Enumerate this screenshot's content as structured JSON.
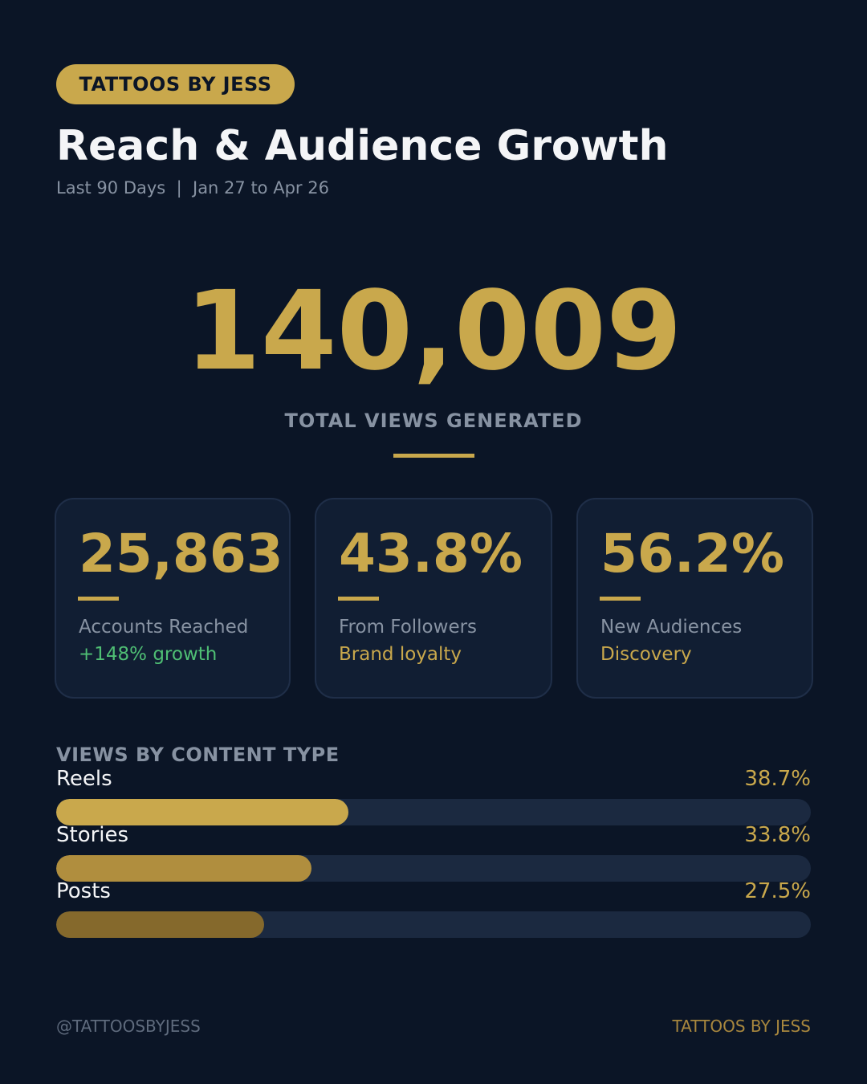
{
  "header": {
    "badge": "TATTOOS BY JESS",
    "title": "Reach & Audience Growth",
    "subtitle": "Last 90 Days  |  Jan 27 to Apr 26"
  },
  "hero": {
    "value": "140,009",
    "label": "TOTAL VIEWS GENERATED"
  },
  "cards": [
    {
      "value": "25,863",
      "label": "Accounts Reached",
      "sub": "+148% growth",
      "sub_color": "#4fbf74"
    },
    {
      "value": "43.8%",
      "label": "From Followers",
      "sub": "Brand loyalty",
      "sub_color": "#c9a84c"
    },
    {
      "value": "56.2%",
      "label": "New Audiences",
      "sub": "Discovery",
      "sub_color": "#c9a84c"
    }
  ],
  "content_type": {
    "title": "VIEWS BY CONTENT TYPE",
    "rows": [
      {
        "name": "Reels",
        "pct_label": "38.7%",
        "color": "#c9a84c"
      },
      {
        "name": "Stories",
        "pct_label": "33.8%",
        "color": "#b08e3e"
      },
      {
        "name": "Posts",
        "pct_label": "27.5%",
        "color": "#85692c"
      }
    ]
  },
  "footer": {
    "handle": "@TATTOOSBYJESS",
    "brand": "TATTOOS BY JESS"
  },
  "colors": {
    "background": "#0b1526",
    "accent_gold": "#c9a84c",
    "card_bg": "#111e33",
    "track": "#1b2940",
    "growth_green": "#4fbf74",
    "muted_text": "#8792a2"
  },
  "chart_data": {
    "type": "bar",
    "orientation": "horizontal",
    "title": "VIEWS BY CONTENT TYPE",
    "categories": [
      "Reels",
      "Stories",
      "Posts"
    ],
    "values": [
      38.7,
      33.8,
      27.5
    ],
    "unit": "%",
    "xlabel": "",
    "ylabel": "",
    "xlim": [
      0,
      100
    ],
    "grid": false,
    "legend": "none",
    "bar_scale_note": "Bar lengths drawn relative to a 0-100% track"
  }
}
